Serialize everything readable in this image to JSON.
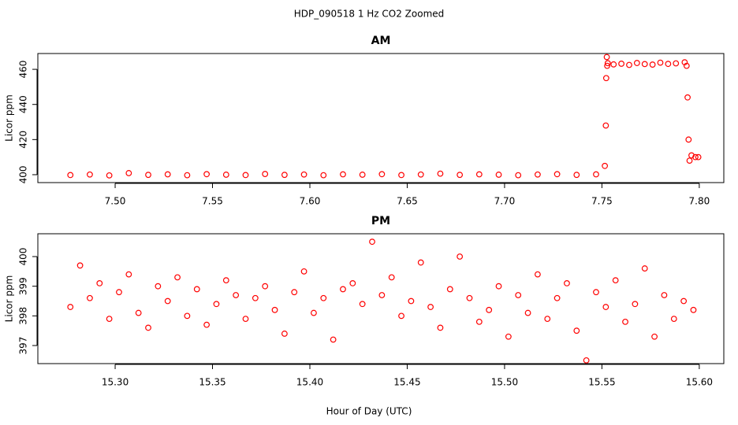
{
  "title": "HDP_090518  1 Hz CO2 Zoomed",
  "x_label": "Hour of Day (UTC)",
  "chart_data": [
    {
      "type": "scatter",
      "title": "AM",
      "y_label": "Licor ppm",
      "color": "#ff0000",
      "xlim": [
        7.4603,
        7.8126
      ],
      "ylim": [
        395.5,
        469
      ],
      "xticks": [
        {
          "value": 7.5,
          "label": "7.50"
        },
        7.55,
        {
          "value": 7.6,
          "label": "7.60"
        },
        7.65,
        {
          "value": 7.7,
          "label": "7.70"
        },
        7.75,
        {
          "value": 7.8,
          "label": "7.80"
        }
      ],
      "yticks": [
        400,
        420,
        440,
        460
      ],
      "series": [
        {
          "name": "AM",
          "color": "#ff0000",
          "x": [
            7.477,
            7.487,
            7.497,
            7.507,
            7.517,
            7.527,
            7.537,
            7.547,
            7.557,
            7.567,
            7.577,
            7.587,
            7.597,
            7.607,
            7.617,
            7.627,
            7.637,
            7.647,
            7.657,
            7.667,
            7.677,
            7.687,
            7.697,
            7.707,
            7.717,
            7.727,
            7.737,
            7.747,
            7.7515,
            7.752,
            7.7522,
            7.7525,
            7.7527,
            7.753,
            7.756,
            7.76,
            7.764,
            7.768,
            7.772,
            7.776,
            7.78,
            7.784,
            7.788,
            7.7925,
            7.7935,
            7.794,
            7.7945,
            7.795,
            7.796,
            7.798,
            7.7995
          ],
          "values": [
            399.8,
            400.1,
            399.6,
            400.9,
            399.9,
            400.2,
            399.7,
            400.3,
            400.0,
            399.8,
            400.4,
            399.9,
            400.1,
            399.7,
            400.2,
            400.0,
            400.3,
            399.8,
            400.1,
            400.6,
            399.9,
            400.2,
            400.0,
            399.7,
            400.1,
            400.3,
            399.9,
            400.2,
            405,
            428,
            455,
            467,
            462,
            463.5,
            462.8,
            463.2,
            462.5,
            463.6,
            463.0,
            462.7,
            463.8,
            463.1,
            463.4,
            464.0,
            462,
            444,
            420,
            408,
            411,
            410,
            410
          ]
        }
      ]
    },
    {
      "type": "scatter",
      "title": "PM",
      "y_label": "Licor ppm",
      "color": "#ff0000",
      "xlim": [
        15.2603,
        15.6126
      ],
      "ylim": [
        396.39,
        400.77
      ],
      "xticks": [
        {
          "value": 15.3,
          "label": "15.30"
        },
        15.35,
        {
          "value": 15.4,
          "label": "15.40"
        },
        15.45,
        {
          "value": 15.5,
          "label": "15.50"
        },
        15.55,
        {
          "value": 15.6,
          "label": "15.60"
        }
      ],
      "yticks": [
        397,
        398,
        399,
        400
      ],
      "series": [
        {
          "name": "PM",
          "color": "#ff0000",
          "x": [
            15.277,
            15.282,
            15.287,
            15.292,
            15.297,
            15.302,
            15.307,
            15.312,
            15.317,
            15.322,
            15.327,
            15.332,
            15.337,
            15.342,
            15.347,
            15.352,
            15.357,
            15.362,
            15.367,
            15.372,
            15.377,
            15.382,
            15.387,
            15.392,
            15.397,
            15.402,
            15.407,
            15.412,
            15.417,
            15.422,
            15.427,
            15.432,
            15.437,
            15.442,
            15.447,
            15.452,
            15.457,
            15.462,
            15.467,
            15.472,
            15.477,
            15.482,
            15.487,
            15.492,
            15.497,
            15.502,
            15.507,
            15.512,
            15.517,
            15.522,
            15.527,
            15.532,
            15.537,
            15.542,
            15.547,
            15.552,
            15.557,
            15.562,
            15.567,
            15.572,
            15.577,
            15.582,
            15.587,
            15.592,
            15.597
          ],
          "values": [
            398.3,
            399.7,
            398.6,
            399.1,
            397.9,
            398.8,
            399.4,
            398.1,
            397.6,
            399.0,
            398.5,
            399.3,
            398.0,
            398.9,
            397.7,
            398.4,
            399.2,
            398.7,
            397.9,
            398.6,
            399.0,
            398.2,
            397.4,
            398.8,
            399.5,
            398.1,
            398.6,
            397.2,
            398.9,
            399.1,
            398.4,
            400.5,
            398.7,
            399.3,
            398.0,
            398.5,
            399.8,
            398.3,
            397.6,
            398.9,
            400.0,
            398.6,
            397.8,
            398.2,
            399.0,
            397.3,
            398.7,
            398.1,
            399.4,
            397.9,
            398.6,
            399.1,
            397.5,
            396.5,
            398.8,
            398.3,
            399.2,
            397.8,
            398.4,
            399.6,
            397.3,
            398.7,
            397.9,
            398.5,
            398.2
          ]
        }
      ]
    }
  ]
}
